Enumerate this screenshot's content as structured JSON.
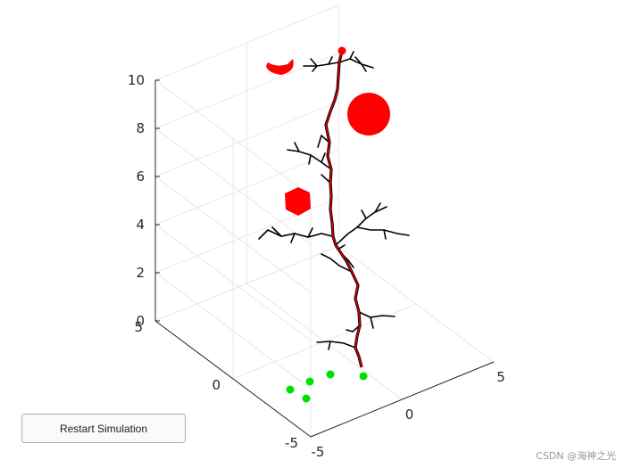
{
  "chart_data": {
    "type": "3d-scene",
    "title": "",
    "xlabel": "",
    "ylabel": "",
    "zlabel": "",
    "xlim": [
      -5,
      5
    ],
    "ylim": [
      -5,
      5
    ],
    "zlim": [
      0,
      10
    ],
    "x_ticks": [
      "-5",
      "0",
      "5"
    ],
    "y_ticks": [
      "-5",
      "0",
      "5"
    ],
    "z_ticks": [
      "0",
      "2",
      "4",
      "6",
      "8",
      "10"
    ],
    "grid": true,
    "colors": {
      "trunk": "#000000",
      "path": "#d40000",
      "obstacle": "#ff0000",
      "seed": "#00e000"
    },
    "seed_points": [
      [
        0.8,
        -4.2,
        0
      ],
      [
        -0.5,
        -4.2,
        0
      ],
      [
        -1.6,
        -4.0,
        0
      ],
      [
        -1.4,
        -4.8,
        0
      ],
      [
        -2.6,
        -4.8,
        0
      ]
    ],
    "obstacles": [
      {
        "shape": "sphere",
        "center": [
          1.0,
          4.5,
          8.0
        ]
      },
      {
        "shape": "hexagonal-prism",
        "center": [
          -4.0,
          -1.0,
          7.0
        ]
      },
      {
        "shape": "cylinder-arc",
        "center": [
          -3.0,
          3.0,
          11.6
        ]
      }
    ],
    "goal": [
      1.0,
      3.6,
      12.2
    ]
  },
  "ui": {
    "restart_label": "Restart Simulation"
  },
  "watermark": "CSDN @海神之光"
}
